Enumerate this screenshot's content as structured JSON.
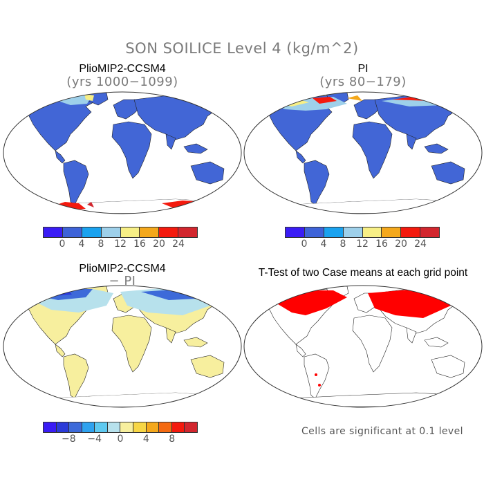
{
  "title": "SON SOILICE Level 4 (kg/m^2)",
  "panels": {
    "tl": {
      "title": "PlioMIP2-CCSM4",
      "subtitle": "(yrs 1000−1099)"
    },
    "tr": {
      "title": "PI",
      "subtitle": "(yrs 80−179)"
    },
    "bl": {
      "title": "PlioMIP2-CCSM4",
      "subtitle": "− PI"
    },
    "br": {
      "title": "T-Test of two Case means at each grid point",
      "subtitle": ""
    }
  },
  "colorbar_abs": {
    "colors": [
      "#3a1cf5",
      "#3e63d8",
      "#1aa2ef",
      "#9ed0ea",
      "#f7ef86",
      "#f4a81c",
      "#f41a0e",
      "#d2262e"
    ],
    "ticks": [
      "0",
      "4",
      "8",
      "12",
      "16",
      "20",
      "24"
    ]
  },
  "colorbar_diff": {
    "colors": [
      "#3a1cf5",
      "#2b3bd9",
      "#3d6ad9",
      "#2fa2ef",
      "#5ec9f0",
      "#b7e1ec",
      "#f7ef9e",
      "#f7d645",
      "#f4a81c",
      "#f46a12",
      "#f41a0e",
      "#d2262e"
    ],
    "ticks": [
      "−8",
      "−4",
      "0",
      "4",
      "8"
    ]
  },
  "significance_note": "Cells are significant at 0.1 level",
  "map_colors": {
    "ocean": "#ffffff",
    "land_abs": "#4266d6",
    "land_diff": "#f7ef9e",
    "significant": "#ff0000",
    "coast": "#222222"
  }
}
